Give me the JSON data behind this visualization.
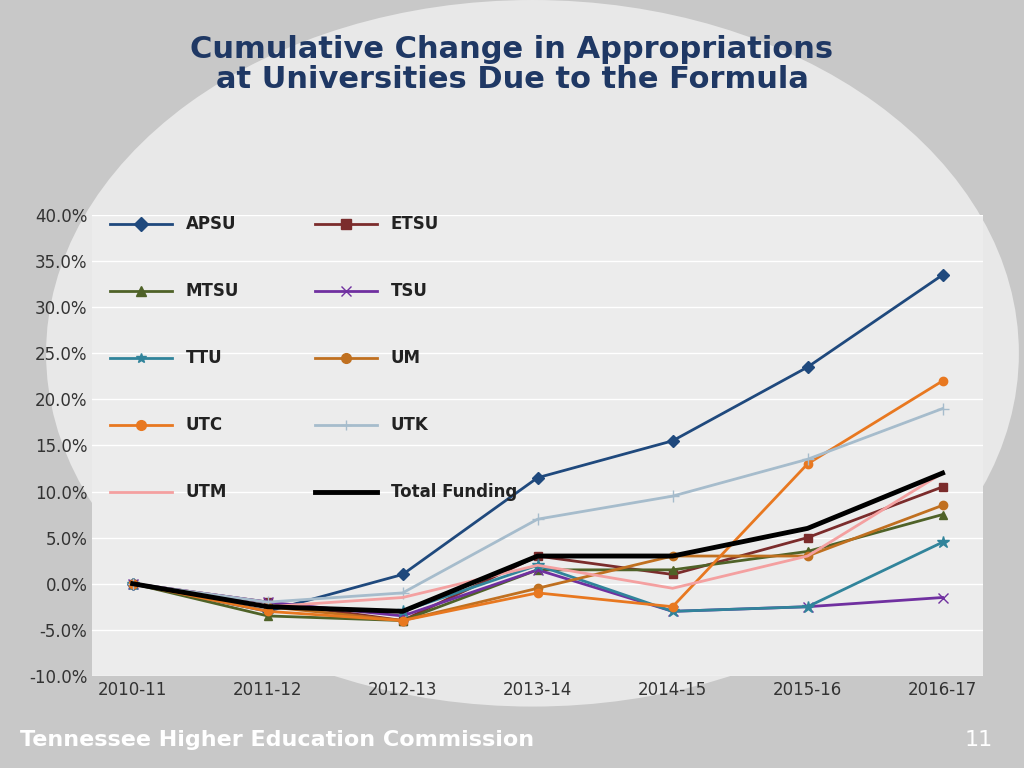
{
  "title_line1": "Cumulative Change in Appropriations",
  "title_line2": "at Universities Due to the Formula",
  "title_color": "#1F3864",
  "x_labels": [
    "2010-11",
    "2011-12",
    "2012-13",
    "2013-14",
    "2014-15",
    "2015-16",
    "2016-17"
  ],
  "x_values": [
    0,
    1,
    2,
    3,
    4,
    5,
    6
  ],
  "ylim": [
    -0.1,
    0.4
  ],
  "yticks": [
    -0.1,
    -0.05,
    0.0,
    0.05,
    0.1,
    0.15,
    0.2,
    0.25,
    0.3,
    0.35,
    0.4
  ],
  "series": {
    "APSU": {
      "values": [
        0.0,
        -0.03,
        0.01,
        0.115,
        0.155,
        0.235,
        0.335
      ],
      "color": "#1F497D",
      "marker": "D",
      "linewidth": 2.0,
      "markersize": 6
    },
    "ETSU": {
      "values": [
        0.0,
        -0.02,
        -0.04,
        0.03,
        0.01,
        0.05,
        0.105
      ],
      "color": "#7B2C2C",
      "marker": "s",
      "linewidth": 2.0,
      "markersize": 6
    },
    "MTSU": {
      "values": [
        0.0,
        -0.035,
        -0.04,
        0.015,
        0.015,
        0.035,
        0.075
      ],
      "color": "#4F6228",
      "marker": "^",
      "linewidth": 2.0,
      "markersize": 6
    },
    "TSU": {
      "values": [
        0.0,
        -0.02,
        -0.035,
        0.015,
        -0.03,
        -0.025,
        -0.015
      ],
      "color": "#7030A0",
      "marker": "x",
      "linewidth": 2.0,
      "markersize": 7
    },
    "TTU": {
      "values": [
        0.0,
        -0.025,
        -0.03,
        0.02,
        -0.03,
        -0.025,
        0.045
      ],
      "color": "#31849B",
      "marker": "*",
      "linewidth": 2.0,
      "markersize": 9
    },
    "UM": {
      "values": [
        0.0,
        -0.025,
        -0.04,
        -0.005,
        0.03,
        0.03,
        0.085
      ],
      "color": "#C07020",
      "marker": "o",
      "linewidth": 2.0,
      "markersize": 6
    },
    "UTC": {
      "values": [
        0.0,
        -0.03,
        -0.04,
        -0.01,
        -0.025,
        0.13,
        0.22
      ],
      "color": "#E87820",
      "marker": "o",
      "linewidth": 2.0,
      "markersize": 6
    },
    "UTK": {
      "values": [
        0.0,
        -0.02,
        -0.01,
        0.07,
        0.095,
        0.135,
        0.19
      ],
      "color": "#A6BCCC",
      "marker": "+",
      "linewidth": 2.0,
      "markersize": 9
    },
    "UTM": {
      "values": [
        0.0,
        -0.025,
        -0.015,
        0.02,
        -0.005,
        0.03,
        0.12
      ],
      "color": "#F4A0A0",
      "marker": "None",
      "linewidth": 2.0,
      "markersize": 0
    },
    "Total Funding": {
      "values": [
        0.0,
        -0.025,
        -0.03,
        0.03,
        0.03,
        0.06,
        0.12
      ],
      "color": "#000000",
      "marker": "None",
      "linewidth": 3.5,
      "markersize": 0
    }
  },
  "legend_rows": [
    [
      "APSU",
      "ETSU"
    ],
    [
      "MTSU",
      "TSU"
    ],
    [
      "TTU",
      "UM"
    ],
    [
      "UTC",
      "UTK"
    ],
    [
      "UTM",
      "Total Funding"
    ]
  ],
  "outer_bg": "#C8C8C8",
  "ellipse_bg": "#E8E8E8",
  "plot_bg": "#ECECEC",
  "grid_color": "#FFFFFF",
  "footer_text": "Tennessee Higher Education Commission",
  "footer_color": "#FFFFFF",
  "footer_bg": "#1F3864",
  "page_number": "11"
}
